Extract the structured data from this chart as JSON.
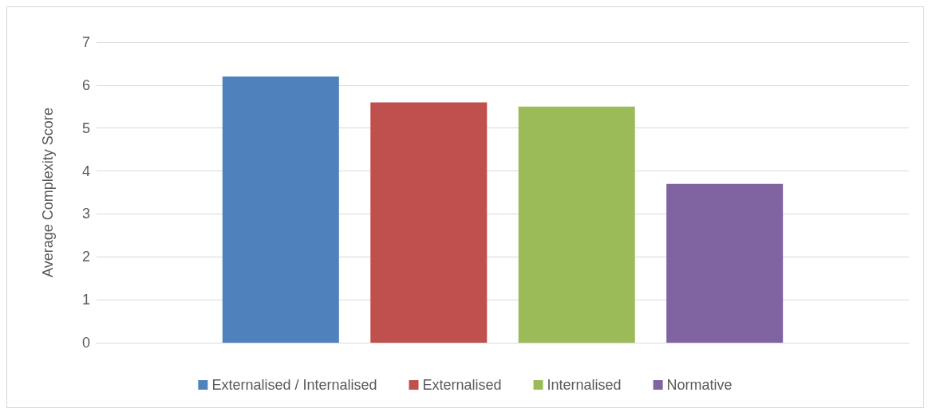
{
  "chart_data": {
    "type": "bar",
    "ylabel": "Average Complexity Score",
    "categories": [
      null
    ],
    "series": [
      {
        "name": "Externalised / Internalised",
        "color": "#4f81bd",
        "values": [
          6.2
        ]
      },
      {
        "name": "Externalised",
        "color": "#c0504d",
        "values": [
          5.6
        ]
      },
      {
        "name": "Internalised",
        "color": "#9bbb59",
        "values": [
          5.5
        ]
      },
      {
        "name": "Normative",
        "color": "#8064a2",
        "values": [
          3.7
        ]
      }
    ],
    "ylim": [
      0,
      7
    ],
    "yticks": [
      0,
      1,
      2,
      3,
      4,
      5,
      6,
      7
    ],
    "grid": "y",
    "legend": "bottom"
  }
}
